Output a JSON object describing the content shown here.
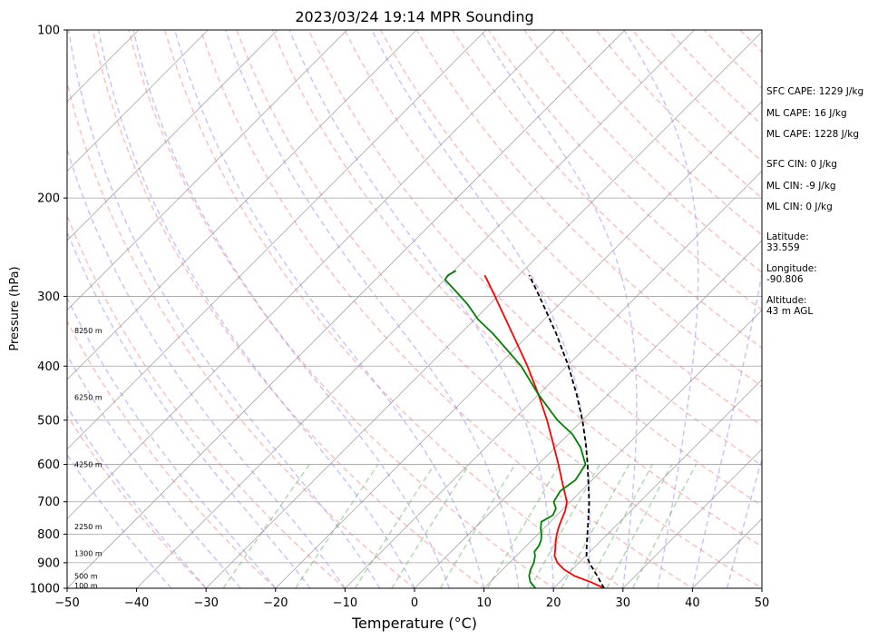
{
  "chart_data": {
    "type": "line",
    "title": "2023/03/24 19:14 MPR Sounding",
    "xlabel": "Temperature (°C)",
    "ylabel": "Pressure (hPa)",
    "xlim": [
      -50,
      50
    ],
    "ylim": [
      1000,
      100
    ],
    "y_scale": "log",
    "skew": true,
    "grid": true,
    "x_ticks": [
      -50,
      -40,
      -30,
      -20,
      -10,
      0,
      10,
      20,
      30,
      40,
      50
    ],
    "y_ticks": [
      1000,
      900,
      800,
      700,
      600,
      500,
      400,
      300,
      200,
      100
    ],
    "series": [
      {
        "color": "#ff0000",
        "points": [
          [
            1000,
            27.3
          ],
          [
            975,
            24.5
          ],
          [
            950,
            21.2
          ],
          [
            925,
            18.8
          ],
          [
            900,
            16.9
          ],
          [
            875,
            15.5
          ],
          [
            850,
            14.6
          ],
          [
            825,
            13.6
          ],
          [
            800,
            12.7
          ],
          [
            775,
            11.9
          ],
          [
            750,
            11.2
          ],
          [
            725,
            10.5
          ],
          [
            700,
            9.5
          ],
          [
            650,
            6.3
          ],
          [
            600,
            2.9
          ],
          [
            550,
            -0.9
          ],
          [
            500,
            -5.1
          ],
          [
            450,
            -10.0
          ],
          [
            400,
            -15.7
          ],
          [
            350,
            -22.5
          ],
          [
            300,
            -30.4
          ],
          [
            275,
            -34.9
          ]
        ]
      },
      {
        "color": "#008000",
        "points": [
          [
            1000,
            17.4
          ],
          [
            975,
            15.8
          ],
          [
            950,
            14.7
          ],
          [
            925,
            14.0
          ],
          [
            900,
            13.5
          ],
          [
            875,
            12.7
          ],
          [
            860,
            12.0
          ],
          [
            840,
            11.8
          ],
          [
            820,
            11.3
          ],
          [
            800,
            10.5
          ],
          [
            780,
            9.5
          ],
          [
            760,
            8.7
          ],
          [
            740,
            9.4
          ],
          [
            720,
            8.9
          ],
          [
            700,
            7.6
          ],
          [
            670,
            7.0
          ],
          [
            640,
            7.6
          ],
          [
            600,
            6.8
          ],
          [
            560,
            3.7
          ],
          [
            530,
            0.6
          ],
          [
            500,
            -3.6
          ],
          [
            450,
            -10.0
          ],
          [
            400,
            -16.6
          ],
          [
            350,
            -25.3
          ],
          [
            330,
            -29.5
          ],
          [
            310,
            -33.2
          ],
          [
            295,
            -36.5
          ],
          [
            280,
            -40.0
          ],
          [
            275,
            -40.2
          ],
          [
            270,
            -39.7
          ]
        ]
      },
      {
        "color": "#000000",
        "dashed": true,
        "points": [
          [
            1000,
            27.3
          ],
          [
            975,
            25.9
          ],
          [
            950,
            24.5
          ],
          [
            925,
            23.0
          ],
          [
            900,
            21.5
          ],
          [
            875,
            20.1
          ],
          [
            850,
            19.1
          ],
          [
            800,
            17.1
          ],
          [
            750,
            15.0
          ],
          [
            700,
            12.7
          ],
          [
            650,
            10.0
          ],
          [
            600,
            7.1
          ],
          [
            550,
            3.8
          ],
          [
            500,
            0.0
          ],
          [
            450,
            -4.5
          ],
          [
            400,
            -9.8
          ],
          [
            350,
            -16.2
          ],
          [
            300,
            -24.0
          ],
          [
            275,
            -28.5
          ]
        ]
      }
    ],
    "height_labels": [
      {
        "text": "100 m",
        "pressure": 988
      },
      {
        "text": "500 m",
        "pressure": 950
      },
      {
        "text": "1300 m",
        "pressure": 865
      },
      {
        "text": "2250 m",
        "pressure": 775
      },
      {
        "text": "4250 m",
        "pressure": 600
      },
      {
        "text": "6250 m",
        "pressure": 455
      },
      {
        "text": "8250 m",
        "pressure": 345
      }
    ]
  },
  "side_panel": {
    "sfc_cape": "SFC CAPE: 1229 J/kg",
    "ml_cape_1": "ML CAPE: 16 J/kg",
    "ml_cape_2": "ML CAPE: 1228 J/kg",
    "sfc_cin": "SFC CIN: 0 J/kg",
    "ml_cin_1": "ML CIN: -9 J/kg",
    "ml_cin_2": "ML CIN: 0 J/kg",
    "latitude_label": "Latitude:",
    "latitude_value": "33.559",
    "longitude_label": "Longitude:",
    "longitude_value": "-90.806",
    "altitude_label": "Altitude:",
    "altitude_value": "43 m AGL"
  },
  "colors": {
    "temperature": "#ff0000",
    "dewpoint": "#008000",
    "parcel": "#000000",
    "dry_adiabats": "#ff8080",
    "moist_adiabats": "#8080ff",
    "mixing_ratio": "#55aa55",
    "isotherms": "#888888"
  }
}
